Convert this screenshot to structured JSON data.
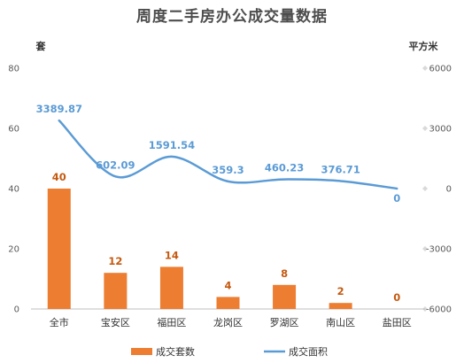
{
  "chart_data": {
    "type": "bar",
    "title": "周度二手房办公成交量数据",
    "categories": [
      "全市",
      "宝安区",
      "福田区",
      "龙岗区",
      "罗湖区",
      "南山区",
      "盐田区"
    ],
    "left_axis": {
      "unit": "套",
      "ylim": [
        0,
        80
      ],
      "ticks": [
        0,
        20,
        40,
        60,
        80
      ]
    },
    "right_axis": {
      "unit": "平方米",
      "ylim": [
        -6000,
        6000
      ],
      "ticks": [
        -6000,
        -3000,
        0,
        3000,
        6000
      ]
    },
    "series": [
      {
        "name": "成交套数",
        "type": "bar",
        "axis": "left",
        "color": "#ed7d31",
        "values": [
          40,
          12,
          14,
          4,
          8,
          2,
          0
        ],
        "labels": [
          "40",
          "12",
          "14",
          "4",
          "8",
          "2",
          "0"
        ]
      },
      {
        "name": "成交面积",
        "type": "line",
        "axis": "right",
        "color": "#5b9bd5",
        "smooth": true,
        "values": [
          3389.87,
          602.09,
          1591.54,
          359.3,
          460.23,
          376.71,
          0
        ],
        "labels": [
          "3389.87",
          "602.09",
          "1591.54",
          "359.3",
          "460.23",
          "376.71",
          "0"
        ]
      }
    ],
    "grid": false,
    "legend_position": "bottom"
  }
}
